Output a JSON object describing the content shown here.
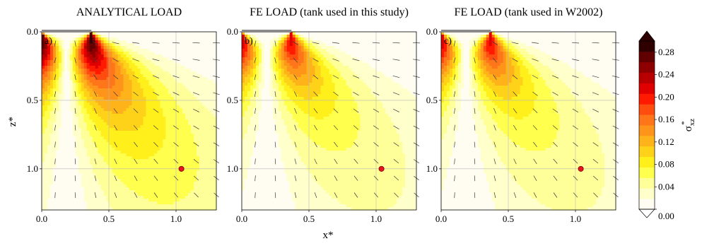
{
  "chart_data": {
    "type": "heatmap",
    "colorbar": {
      "label_main": "σ",
      "label_sub": "xz",
      "label_sup": "*",
      "ticks": [
        "0.00",
        "0.04",
        "0.08",
        "0.12",
        "0.16",
        "0.20",
        "0.24",
        "0.28"
      ],
      "levels": [
        0,
        0.02,
        0.04,
        0.06,
        0.08,
        0.1,
        0.12,
        0.14,
        0.16,
        0.18,
        0.2,
        0.22,
        0.24,
        0.26,
        0.28,
        0.3
      ],
      "colors": [
        "#fffdf2",
        "#ffffcc",
        "#ffff99",
        "#ffff4d",
        "#ffef1a",
        "#ffd21a",
        "#ffb31a",
        "#ff941a",
        "#ff751a",
        "#ff4d10",
        "#ff1a00",
        "#e10000",
        "#b90000",
        "#8e0000",
        "#600000",
        "#2e0000"
      ],
      "range": [
        0,
        0.3
      ],
      "extend": "both"
    },
    "xlabel": "x*",
    "ylabel": "z*",
    "xlim": [
      0,
      1.3
    ],
    "ylim": [
      1.3,
      0
    ],
    "xticks": [
      "0.0",
      "0.5",
      "1.0"
    ],
    "yticks": [
      "0.0",
      "0.5",
      "1.0"
    ],
    "load_strip": {
      "x_start": 0.0,
      "x_end": 0.37
    },
    "point": {
      "x": 1.04,
      "z": 1.0,
      "color": "#e8141b"
    },
    "panels": [
      {
        "letter": "a)",
        "title": "ANALYTICAL LOAD",
        "intensity": 1.0
      },
      {
        "letter": "b)",
        "title": "FE LOAD (tank used in this study)",
        "intensity": 0.8
      },
      {
        "letter": "c)",
        "title": "FE LOAD (tank used in W2002)",
        "intensity": 0.8
      }
    ]
  }
}
